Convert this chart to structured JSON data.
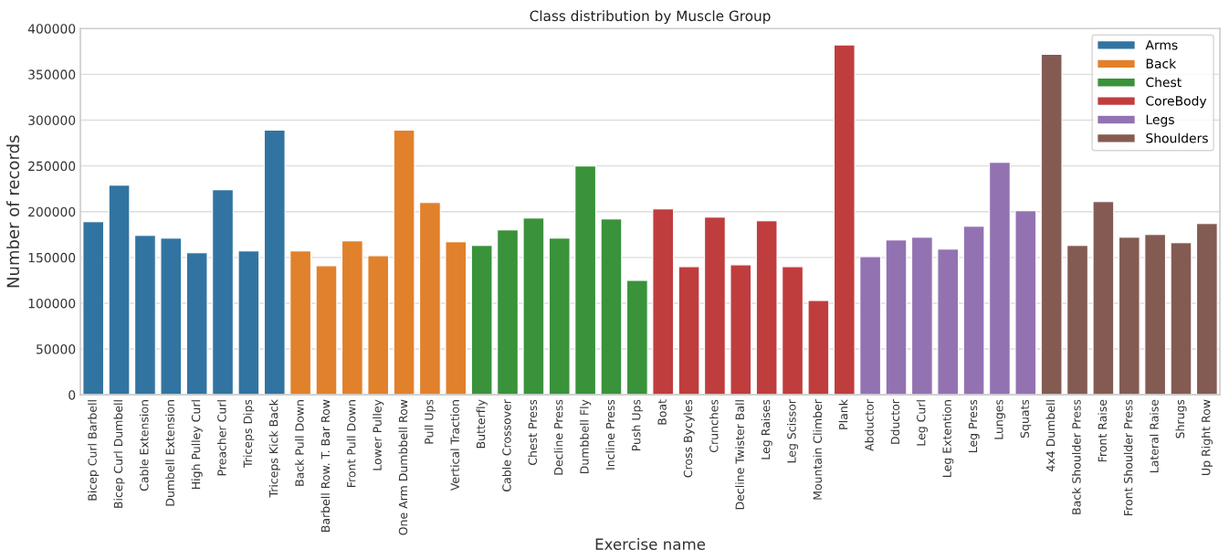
{
  "chart_data": {
    "type": "bar",
    "title": "Class distribution by Muscle Group",
    "xlabel": "Exercise name",
    "ylabel": "Number of records",
    "categories": [
      "Bicep Curl Barbell",
      "Bicep Curl Dumbell",
      "Cable Extension",
      "Dumbell Extension",
      "High Pulley Curl",
      "Preacher Curl",
      "Triceps Dips",
      "Triceps Kick Back",
      "Back Pull Down",
      "Barbell Row. T. Bar Row",
      "Front Pull Down",
      "Lower Pulley",
      "One Arm Dumbbell Row",
      "Pull Ups",
      "Vertical Traction",
      "Butterfly",
      "Cable Crossover",
      "Chest Press",
      "Decline Press",
      "Dumbbell Fly",
      "Incline Press",
      "Push Ups",
      "Boat",
      "Cross Bycyles",
      "Crunches",
      "Decline Twister Ball",
      "Leg Raises",
      "Leg Scissor",
      "Mountain Climber",
      "Plank",
      "Abductor",
      "Dductor",
      "Leg Curl",
      "Leg Extention",
      "Leg Press",
      "Lunges",
      "Squats",
      "4x4 Dumbell",
      "Back Shoulder Press",
      "Front Raise",
      "Front Shoulder Press",
      "Lateral Raise",
      "Shrugs",
      "Up Right Row"
    ],
    "series": [
      {
        "name": "Arms",
        "color": "#3274a1",
        "values": [
          189000,
          229000,
          174000,
          171000,
          155000,
          224000,
          157000,
          289000,
          null,
          null,
          null,
          null,
          null,
          null,
          null,
          null,
          null,
          null,
          null,
          null,
          null,
          null,
          null,
          null,
          null,
          null,
          null,
          null,
          null,
          null,
          null,
          null,
          null,
          null,
          null,
          null,
          null,
          null,
          null,
          null,
          null,
          null,
          null,
          null
        ]
      },
      {
        "name": "Back",
        "color": "#e1812c",
        "values": [
          null,
          null,
          null,
          null,
          null,
          null,
          null,
          null,
          157000,
          141000,
          168000,
          152000,
          289000,
          210000,
          167000,
          null,
          null,
          null,
          null,
          null,
          null,
          null,
          null,
          null,
          null,
          null,
          null,
          null,
          null,
          null,
          null,
          null,
          null,
          null,
          null,
          null,
          null,
          null,
          null,
          null,
          null,
          null,
          null,
          null
        ]
      },
      {
        "name": "Chest",
        "color": "#3a923a",
        "values": [
          null,
          null,
          null,
          null,
          null,
          null,
          null,
          null,
          null,
          null,
          null,
          null,
          null,
          null,
          null,
          163000,
          180000,
          193000,
          171000,
          250000,
          192000,
          125000,
          null,
          null,
          null,
          null,
          null,
          null,
          null,
          null,
          null,
          null,
          null,
          null,
          null,
          null,
          null,
          null,
          null,
          null,
          null,
          null,
          null,
          null
        ]
      },
      {
        "name": "CoreBody",
        "color": "#c03d3e",
        "values": [
          null,
          null,
          null,
          null,
          null,
          null,
          null,
          null,
          null,
          null,
          null,
          null,
          null,
          null,
          null,
          null,
          null,
          null,
          null,
          null,
          null,
          null,
          203000,
          140000,
          194000,
          142000,
          190000,
          140000,
          103000,
          382000,
          null,
          null,
          null,
          null,
          null,
          null,
          null,
          null,
          null,
          null,
          null,
          null,
          null,
          null
        ]
      },
      {
        "name": "Legs",
        "color": "#9372b2",
        "values": [
          null,
          null,
          null,
          null,
          null,
          null,
          null,
          null,
          null,
          null,
          null,
          null,
          null,
          null,
          null,
          null,
          null,
          null,
          null,
          null,
          null,
          null,
          null,
          null,
          null,
          null,
          null,
          null,
          null,
          null,
          151000,
          169000,
          172000,
          159000,
          184000,
          254000,
          201000,
          null,
          null,
          null,
          null,
          null,
          null,
          null
        ]
      },
      {
        "name": "Shoulders",
        "color": "#845b53",
        "values": [
          null,
          null,
          null,
          null,
          null,
          null,
          null,
          null,
          null,
          null,
          null,
          null,
          null,
          null,
          null,
          null,
          null,
          null,
          null,
          null,
          null,
          null,
          null,
          null,
          null,
          null,
          null,
          null,
          null,
          null,
          null,
          null,
          null,
          null,
          null,
          null,
          null,
          372000,
          163000,
          211000,
          172000,
          175000,
          166000,
          187000
        ]
      }
    ],
    "ylim": [
      0,
      400000
    ],
    "yticks": [
      0,
      50000,
      100000,
      150000,
      200000,
      250000,
      300000,
      350000,
      400000
    ],
    "grid": "y",
    "legend": "top right"
  }
}
